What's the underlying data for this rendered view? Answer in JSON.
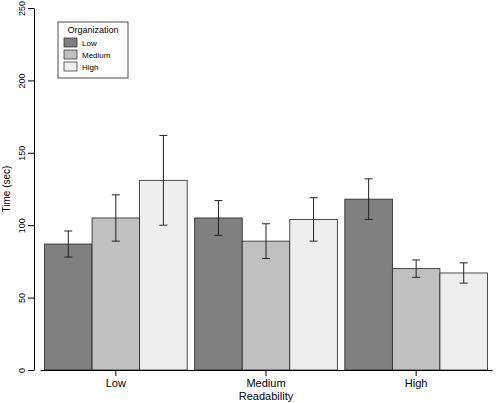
{
  "chart_data": {
    "type": "bar",
    "x_label": "Readability",
    "y_label": "Time (sec)",
    "legend_title": "Organization",
    "legend": "top-left",
    "categories": [
      "Low",
      "Medium",
      "High"
    ],
    "series": [
      {
        "name": "Low",
        "color": "#808080",
        "values": [
          87,
          105,
          118
        ],
        "errors": [
          9,
          12,
          14
        ]
      },
      {
        "name": "Medium",
        "color": "#c0c0c0",
        "values": [
          105,
          89,
          70
        ],
        "errors": [
          16,
          12,
          6
        ]
      },
      {
        "name": "High",
        "color": "#eeeeee",
        "values": [
          131,
          104,
          67
        ],
        "errors": [
          31,
          15,
          7
        ]
      }
    ],
    "ylim": [
      0,
      250
    ],
    "yticks": [
      0,
      50,
      100,
      150,
      200,
      250
    ],
    "grid": false
  }
}
